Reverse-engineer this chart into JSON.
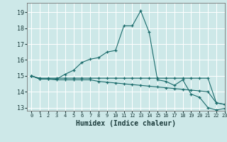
{
  "title": "",
  "xlabel": "Humidex (Indice chaleur)",
  "xlim": [
    -0.5,
    23
  ],
  "ylim": [
    12.8,
    19.6
  ],
  "yticks": [
    13,
    14,
    15,
    16,
    17,
    18,
    19
  ],
  "xticks": [
    0,
    1,
    2,
    3,
    4,
    5,
    6,
    7,
    8,
    9,
    10,
    11,
    12,
    13,
    14,
    15,
    16,
    17,
    18,
    19,
    20,
    21,
    22,
    23
  ],
  "bg_color": "#cde8e8",
  "grid_color": "#ffffff",
  "line_color": "#1a6b6b",
  "lines": [
    {
      "x": [
        0,
        1,
        2,
        3,
        4,
        5,
        6,
        7,
        8,
        9,
        10,
        11,
        12,
        13,
        14,
        15,
        16,
        17,
        18,
        19,
        20,
        21,
        22,
        23
      ],
      "y": [
        15.0,
        14.8,
        14.8,
        14.8,
        15.1,
        15.35,
        15.85,
        16.05,
        16.15,
        16.5,
        16.6,
        18.15,
        18.15,
        19.1,
        17.75,
        14.75,
        14.65,
        14.4,
        14.75,
        13.85,
        13.65,
        13.0,
        12.85,
        12.95
      ]
    },
    {
      "x": [
        0,
        1,
        2,
        3,
        4,
        5,
        6,
        7,
        8,
        9,
        10,
        11,
        12,
        13,
        14,
        15,
        16,
        17,
        18,
        19,
        20,
        21,
        22,
        23
      ],
      "y": [
        15.0,
        14.8,
        14.8,
        14.75,
        14.75,
        14.75,
        14.75,
        14.75,
        14.65,
        14.6,
        14.55,
        14.5,
        14.45,
        14.4,
        14.35,
        14.3,
        14.25,
        14.2,
        14.15,
        14.1,
        14.05,
        14.0,
        13.3,
        13.2
      ]
    },
    {
      "x": [
        0,
        1,
        2,
        3,
        4,
        5,
        6,
        7,
        8,
        9,
        10,
        11,
        12,
        13,
        14,
        15,
        16,
        17,
        18,
        19,
        20,
        21,
        22,
        23
      ],
      "y": [
        15.0,
        14.85,
        14.85,
        14.85,
        14.85,
        14.85,
        14.85,
        14.85,
        14.85,
        14.85,
        14.85,
        14.85,
        14.85,
        14.85,
        14.85,
        14.85,
        14.85,
        14.85,
        14.85,
        14.85,
        14.85,
        14.85,
        13.3,
        13.2
      ]
    }
  ],
  "xlabel_fontsize": 7,
  "tick_fontsize": 5,
  "ytick_fontsize": 6
}
